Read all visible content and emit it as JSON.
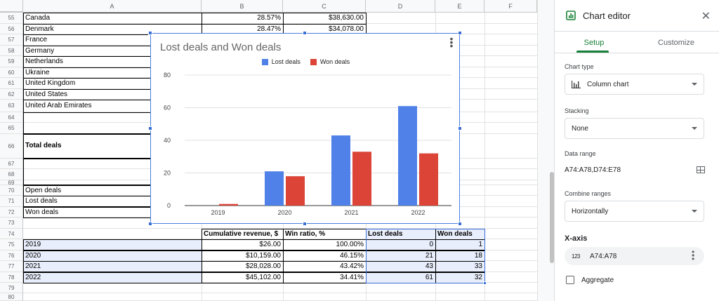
{
  "sheet": {
    "column_headers": [
      "A",
      "B",
      "C",
      "D",
      "E",
      "F"
    ],
    "row_numbers": [
      "55",
      "56",
      "57",
      "58",
      "59",
      "60",
      "61",
      "62",
      "63",
      "64",
      "65",
      "66",
      "67",
      "68",
      "69",
      "70",
      "71",
      "72",
      "73",
      "74",
      "75",
      "76",
      "77",
      "78",
      "79",
      "80"
    ],
    "country_rows": [
      {
        "country": "Canada",
        "ratio": "28.57%",
        "revenue": "$38,630.00"
      },
      {
        "country": "Denmark",
        "ratio": "28.47%",
        "revenue": "$34,078.00"
      },
      {
        "country": "France",
        "ratio": "",
        "revenue": ""
      },
      {
        "country": "Germany",
        "ratio": "",
        "revenue": ""
      },
      {
        "country": "Netherlands",
        "ratio": "",
        "revenue": ""
      },
      {
        "country": "Ukraine",
        "ratio": "",
        "revenue": ""
      },
      {
        "country": "United Kingdom",
        "ratio": "",
        "revenue": ""
      },
      {
        "country": "United States",
        "ratio": "",
        "revenue": ""
      },
      {
        "country": "United Arab Emirates",
        "ratio": "",
        "revenue": ""
      }
    ],
    "total_deals_label": "Total deals",
    "deal_labels": [
      "Open deals",
      "Lost deals",
      "Won deals"
    ],
    "summary_table": {
      "headers": [
        "Cumulative revenue, $",
        "Win ratio, %",
        "Lost deals",
        "Won deals"
      ],
      "rows": [
        {
          "year": "2019",
          "revenue": "$26.00",
          "ratio": "100.00%",
          "lost": "0",
          "won": "1"
        },
        {
          "year": "2020",
          "revenue": "$10,159.00",
          "ratio": "46.15%",
          "lost": "21",
          "won": "18"
        },
        {
          "year": "2021",
          "revenue": "$28,028.00",
          "ratio": "43.42%",
          "lost": "43",
          "won": "33"
        },
        {
          "year": "2022",
          "revenue": "$45,102.00",
          "ratio": "34.41%",
          "lost": "61",
          "won": "32"
        }
      ]
    }
  },
  "chart_data": {
    "type": "bar",
    "title": "Lost deals and Won deals",
    "categories": [
      "2019",
      "2020",
      "2021",
      "2022"
    ],
    "series": [
      {
        "name": "Lost deals",
        "values": [
          0,
          21,
          43,
          61
        ],
        "color": "#4f81e8"
      },
      {
        "name": "Won deals",
        "values": [
          1,
          18,
          33,
          32
        ],
        "color": "#db4437"
      }
    ],
    "ylim": [
      0,
      80
    ],
    "yticks": [
      0,
      20,
      40,
      60,
      80
    ],
    "grid": true,
    "legend": "top"
  },
  "editor": {
    "title": "Chart editor",
    "tabs": [
      "Setup",
      "Customize"
    ],
    "chart_type_label": "Chart type",
    "chart_type_value": "Column chart",
    "stacking_label": "Stacking",
    "stacking_value": "None",
    "data_range_label": "Data range",
    "data_range_value": "A74:A78,D74:E78",
    "combine_label": "Combine ranges",
    "combine_value": "Horizontally",
    "xaxis_label": "X-axis",
    "xaxis_icon": "123",
    "xaxis_value": "A74:A78",
    "aggregate_label": "Aggregate",
    "accent_color": "#188038"
  }
}
